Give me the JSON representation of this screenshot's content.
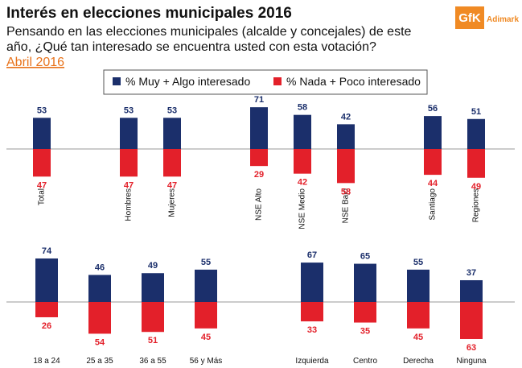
{
  "header": {
    "title": "Interés en elecciones municipales 2016",
    "subtitle_line1": "Pensando en las elecciones municipales (alcalde y concejales) de este",
    "subtitle_line2": "año, ¿Qué tan interesado se encuentra usted con esta votación?",
    "date": "Abril 2016",
    "logo": "GfK",
    "brand": "Adimark"
  },
  "chart_data": [
    {
      "type": "bar",
      "categories": [
        "Total",
        null,
        "Hombres",
        "Mujeres",
        null,
        "NSE Alto",
        "NSE Medio",
        "NSE Bajo",
        null,
        "Santiago",
        "Regiones"
      ],
      "series": [
        {
          "name": "% Muy + Algo interesado",
          "color": "#1b2f6b",
          "values": [
            53,
            null,
            53,
            53,
            null,
            71,
            58,
            42,
            null,
            56,
            51
          ]
        },
        {
          "name": "% Nada + Poco interesado",
          "color": "#e3202a",
          "values": [
            47,
            null,
            47,
            47,
            null,
            29,
            42,
            58,
            null,
            44,
            49
          ]
        }
      ]
    },
    {
      "type": "bar",
      "categories": [
        "18 a 24",
        "25 a 35",
        "36 a 55",
        "56 y Más",
        null,
        "Izquierda",
        "Centro",
        "Derecha",
        "Ninguna"
      ],
      "series": [
        {
          "color": "#1b2f6b",
          "values": [
            74,
            46,
            49,
            55,
            null,
            67,
            65,
            55,
            37
          ]
        },
        {
          "color": "#e3202a",
          "values": [
            26,
            54,
            51,
            45,
            null,
            33,
            35,
            45,
            63
          ]
        }
      ]
    }
  ]
}
